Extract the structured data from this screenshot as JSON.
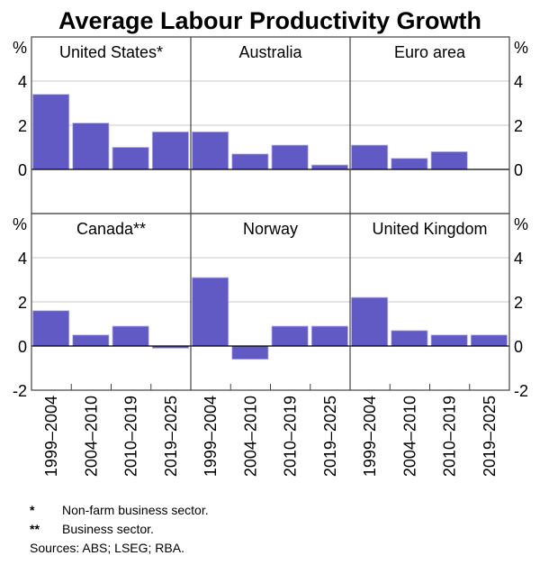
{
  "chart_data": {
    "type": "bar",
    "title": "Average Labour Productivity Growth",
    "ylabel": "%",
    "ylim": [
      -2,
      6
    ],
    "yticks": [
      -2,
      0,
      2,
      4
    ],
    "grid": true,
    "categories": [
      "1999–2004",
      "2004–2010",
      "2010–2019",
      "2019–2025"
    ],
    "bar_color": "#6159c4",
    "panels": [
      {
        "name": "United States*",
        "values": [
          3.4,
          2.1,
          1.0,
          1.7
        ]
      },
      {
        "name": "Australia",
        "values": [
          1.7,
          0.7,
          1.1,
          0.2
        ]
      },
      {
        "name": "Euro area",
        "values": [
          1.1,
          0.5,
          0.8,
          null
        ]
      },
      {
        "name": "Canada**",
        "values": [
          1.6,
          0.5,
          0.9,
          -0.1
        ]
      },
      {
        "name": "Norway",
        "values": [
          3.1,
          -0.6,
          0.9,
          0.9
        ]
      },
      {
        "name": "United Kingdom",
        "values": [
          2.2,
          0.7,
          0.5,
          0.5
        ]
      }
    ],
    "footnotes": [
      {
        "mark": "*",
        "text": "Non-farm business sector."
      },
      {
        "mark": "**",
        "text": "Business sector."
      }
    ],
    "sources": "Sources: ABS; LSEG; RBA."
  }
}
